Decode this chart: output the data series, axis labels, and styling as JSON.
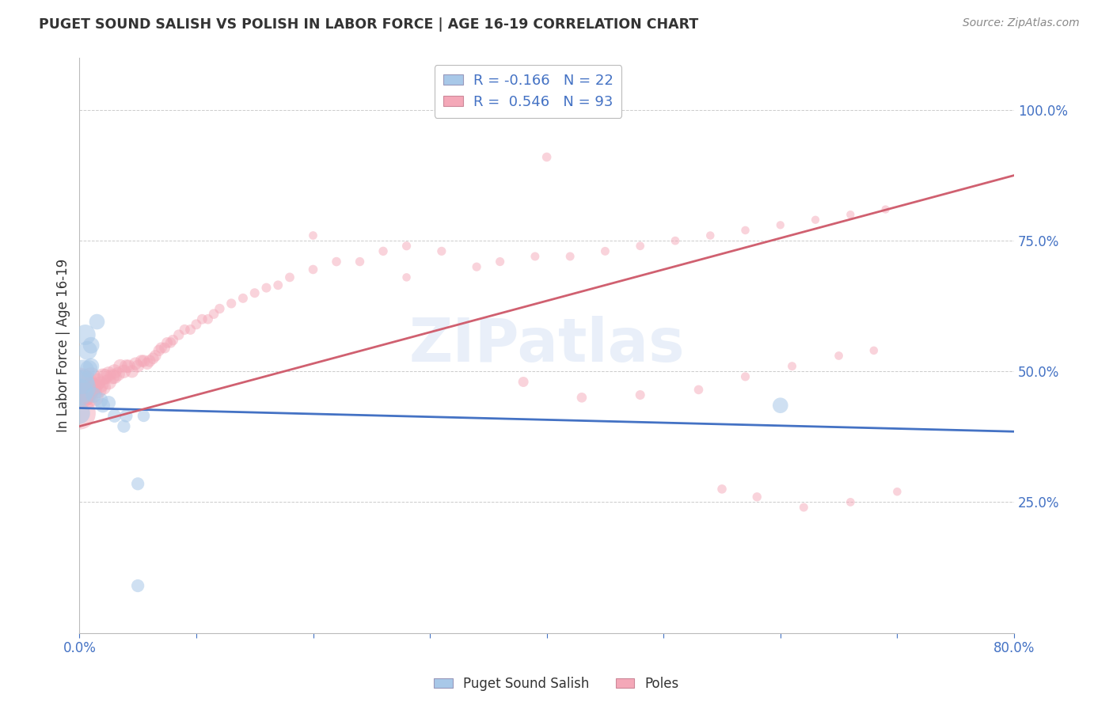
{
  "title": "PUGET SOUND SALISH VS POLISH IN LABOR FORCE | AGE 16-19 CORRELATION CHART",
  "source": "Source: ZipAtlas.com",
  "ylabel": "In Labor Force | Age 16-19",
  "xlim": [
    0.0,
    0.8
  ],
  "ylim": [
    0.0,
    1.1
  ],
  "yticks": [
    0.0,
    0.25,
    0.5,
    0.75,
    1.0
  ],
  "xticks": [
    0.0,
    0.1,
    0.2,
    0.3,
    0.4,
    0.5,
    0.6,
    0.7,
    0.8
  ],
  "blue_color": "#a8c8e8",
  "pink_color": "#f4a8b8",
  "blue_line_color": "#4472c4",
  "pink_line_color": "#d06070",
  "legend_bottom_blue": "Puget Sound Salish",
  "legend_bottom_pink": "Poles",
  "blue_line": [
    0.0,
    0.43,
    0.8,
    0.385
  ],
  "pink_line": [
    0.0,
    0.395,
    0.8,
    0.875
  ],
  "blue_x": [
    0.0,
    0.0,
    0.0,
    0.002,
    0.003,
    0.005,
    0.007,
    0.008,
    0.01,
    0.01,
    0.012,
    0.015,
    0.018,
    0.02,
    0.025,
    0.03,
    0.038,
    0.04,
    0.05,
    0.055,
    0.6,
    0.05
  ],
  "blue_y": [
    0.47,
    0.46,
    0.42,
    0.48,
    0.5,
    0.57,
    0.54,
    0.505,
    0.55,
    0.51,
    0.455,
    0.595,
    0.445,
    0.435,
    0.44,
    0.415,
    0.395,
    0.415,
    0.285,
    0.415,
    0.435,
    0.09
  ],
  "blue_s": [
    350,
    250,
    150,
    200,
    180,
    140,
    120,
    100,
    90,
    85,
    80,
    80,
    75,
    70,
    65,
    60,
    55,
    55,
    55,
    50,
    80,
    55
  ],
  "pink_x": [
    0.0,
    0.0,
    0.002,
    0.003,
    0.005,
    0.006,
    0.007,
    0.008,
    0.01,
    0.01,
    0.012,
    0.013,
    0.015,
    0.016,
    0.018,
    0.02,
    0.02,
    0.022,
    0.025,
    0.025,
    0.028,
    0.03,
    0.03,
    0.033,
    0.035,
    0.038,
    0.04,
    0.042,
    0.045,
    0.048,
    0.05,
    0.053,
    0.055,
    0.058,
    0.06,
    0.063,
    0.065,
    0.068,
    0.07,
    0.073,
    0.075,
    0.078,
    0.08,
    0.085,
    0.09,
    0.095,
    0.1,
    0.105,
    0.11,
    0.115,
    0.12,
    0.13,
    0.14,
    0.15,
    0.16,
    0.17,
    0.18,
    0.2,
    0.22,
    0.24,
    0.26,
    0.28,
    0.31,
    0.34,
    0.36,
    0.39,
    0.42,
    0.45,
    0.48,
    0.51,
    0.54,
    0.57,
    0.6,
    0.63,
    0.66,
    0.69,
    0.2,
    0.28,
    0.38,
    0.43,
    0.48,
    0.53,
    0.57,
    0.61,
    0.65,
    0.68,
    0.55,
    0.58,
    0.62,
    0.66,
    0.7,
    0.35,
    0.4
  ],
  "pink_y": [
    0.47,
    0.42,
    0.455,
    0.48,
    0.455,
    0.47,
    0.45,
    0.465,
    0.47,
    0.49,
    0.47,
    0.45,
    0.48,
    0.465,
    0.475,
    0.49,
    0.47,
    0.49,
    0.48,
    0.495,
    0.49,
    0.49,
    0.5,
    0.495,
    0.51,
    0.5,
    0.51,
    0.51,
    0.5,
    0.515,
    0.51,
    0.52,
    0.52,
    0.515,
    0.52,
    0.525,
    0.53,
    0.54,
    0.545,
    0.545,
    0.555,
    0.555,
    0.56,
    0.57,
    0.58,
    0.58,
    0.59,
    0.6,
    0.6,
    0.61,
    0.62,
    0.63,
    0.64,
    0.65,
    0.66,
    0.665,
    0.68,
    0.695,
    0.71,
    0.71,
    0.73,
    0.74,
    0.73,
    0.7,
    0.71,
    0.72,
    0.72,
    0.73,
    0.74,
    0.75,
    0.76,
    0.77,
    0.78,
    0.79,
    0.8,
    0.81,
    0.76,
    0.68,
    0.48,
    0.45,
    0.455,
    0.465,
    0.49,
    0.51,
    0.53,
    0.54,
    0.275,
    0.26,
    0.24,
    0.25,
    0.27,
    1.0,
    0.91
  ],
  "pink_s": [
    500,
    350,
    220,
    200,
    160,
    150,
    140,
    130,
    120,
    115,
    110,
    105,
    100,
    95,
    90,
    90,
    85,
    80,
    80,
    75,
    75,
    70,
    68,
    65,
    65,
    62,
    60,
    58,
    55,
    53,
    53,
    50,
    50,
    48,
    48,
    45,
    45,
    43,
    43,
    40,
    40,
    38,
    38,
    37,
    36,
    35,
    35,
    34,
    33,
    33,
    32,
    31,
    30,
    30,
    30,
    29,
    29,
    28,
    28,
    27,
    27,
    26,
    26,
    26,
    26,
    25,
    25,
    25,
    24,
    24,
    23,
    23,
    22,
    22,
    22,
    22,
    24,
    23,
    35,
    33,
    30,
    28,
    26,
    25,
    24,
    23,
    28,
    27,
    25,
    24,
    23,
    30,
    28
  ],
  "grid_color": "#cccccc",
  "bg_color": "#ffffff",
  "title_color": "#333333",
  "watermark_color": "#c8d8f0"
}
